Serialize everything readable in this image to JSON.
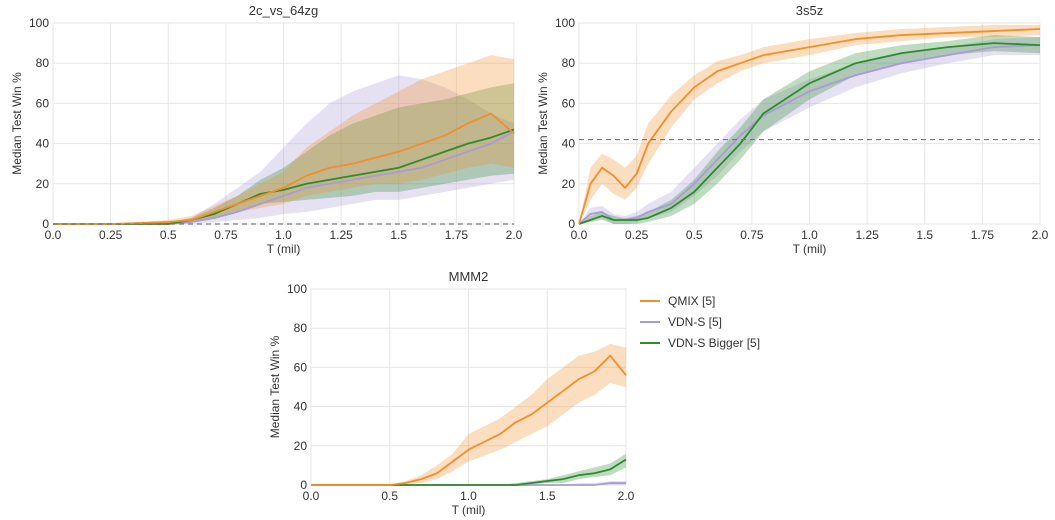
{
  "legend": {
    "items": [
      {
        "label": "QMIX [5]",
        "color": "#f28e2b"
      },
      {
        "label": "VDN-S [5]",
        "color": "#a89bd6"
      },
      {
        "label": "VDN-S Bigger [5]",
        "color": "#2e8b2e"
      }
    ]
  },
  "chart_data": [
    {
      "type": "line",
      "title": "2c_vs_64zg",
      "xlabel": "T (mil)",
      "ylabel": "Median Test Win %",
      "xlim": [
        0,
        2.0
      ],
      "ylim": [
        0,
        100
      ],
      "xticks": [
        "0.0",
        "0.25",
        "0.5",
        "0.75",
        "1.0",
        "1.25",
        "1.5",
        "1.75",
        "2.0"
      ],
      "yticks": [
        "0",
        "20",
        "40",
        "60",
        "80",
        "100"
      ],
      "grid": true,
      "reference_line": 0,
      "x": [
        0,
        0.25,
        0.5,
        0.6,
        0.7,
        0.8,
        0.9,
        1.0,
        1.1,
        1.2,
        1.3,
        1.4,
        1.5,
        1.6,
        1.7,
        1.8,
        1.9,
        2.0
      ],
      "series": [
        {
          "name": "QMIX [5]",
          "values": [
            0,
            0,
            1,
            2,
            6,
            10,
            14,
            18,
            24,
            28,
            30,
            33,
            36,
            40,
            44,
            50,
            55,
            45
          ],
          "band_low": [
            0,
            0,
            0,
            1,
            3,
            6,
            8,
            10,
            14,
            16,
            18,
            20,
            20,
            22,
            25,
            28,
            30,
            28
          ],
          "band_high": [
            0,
            0,
            2,
            4,
            9,
            14,
            20,
            26,
            38,
            46,
            54,
            60,
            66,
            72,
            76,
            80,
            84,
            82
          ]
        },
        {
          "name": "VDN-S [5]",
          "values": [
            0,
            0,
            0,
            1,
            3,
            6,
            10,
            14,
            18,
            20,
            22,
            24,
            26,
            28,
            32,
            36,
            40,
            46
          ],
          "band_low": [
            0,
            0,
            0,
            0,
            1,
            2,
            3,
            5,
            6,
            8,
            10,
            12,
            12,
            14,
            16,
            18,
            20,
            22
          ],
          "band_high": [
            0,
            0,
            1,
            3,
            10,
            18,
            26,
            38,
            50,
            60,
            66,
            70,
            74,
            72,
            68,
            62,
            55,
            50
          ]
        },
        {
          "name": "VDN-S Bigger [5]",
          "values": [
            0,
            0,
            0,
            2,
            5,
            10,
            15,
            17,
            20,
            22,
            24,
            26,
            28,
            32,
            36,
            40,
            43,
            47
          ],
          "band_low": [
            0,
            0,
            0,
            1,
            3,
            6,
            10,
            11,
            12,
            13,
            14,
            16,
            16,
            18,
            20,
            22,
            24,
            25
          ],
          "band_high": [
            0,
            0,
            1,
            3,
            8,
            14,
            22,
            28,
            36,
            44,
            50,
            54,
            58,
            60,
            62,
            65,
            68,
            70
          ]
        }
      ]
    },
    {
      "type": "line",
      "title": "3s5z",
      "xlabel": "T (mil)",
      "ylabel": "Median Test Win %",
      "xlim": [
        0,
        2.0
      ],
      "ylim": [
        0,
        100
      ],
      "xticks": [
        "0.0",
        "0.25",
        "0.5",
        "0.75",
        "1.0",
        "1.25",
        "1.5",
        "1.75",
        "2.0"
      ],
      "yticks": [
        "0",
        "20",
        "40",
        "60",
        "80",
        "100"
      ],
      "grid": true,
      "reference_line": 42,
      "x": [
        0,
        0.05,
        0.1,
        0.15,
        0.2,
        0.25,
        0.3,
        0.4,
        0.5,
        0.6,
        0.7,
        0.8,
        1.0,
        1.2,
        1.4,
        1.6,
        1.8,
        2.0
      ],
      "series": [
        {
          "name": "QMIX [5]",
          "values": [
            0,
            20,
            28,
            24,
            18,
            25,
            40,
            56,
            68,
            76,
            80,
            84,
            88,
            92,
            94,
            95,
            96,
            97
          ],
          "band_low": [
            0,
            12,
            20,
            15,
            12,
            18,
            30,
            48,
            62,
            70,
            76,
            80,
            84,
            89,
            91,
            93,
            93,
            94
          ],
          "band_high": [
            0,
            28,
            35,
            32,
            28,
            34,
            50,
            64,
            74,
            81,
            84,
            88,
            92,
            95,
            97,
            98,
            99,
            99
          ]
        },
        {
          "name": "VDN-S [5]",
          "values": [
            0,
            5,
            6,
            2,
            2,
            3,
            6,
            10,
            20,
            32,
            44,
            54,
            66,
            74,
            80,
            84,
            88,
            89
          ],
          "band_low": [
            0,
            2,
            3,
            0,
            0,
            1,
            3,
            6,
            14,
            24,
            36,
            46,
            58,
            68,
            75,
            80,
            84,
            84
          ],
          "band_high": [
            0,
            8,
            9,
            5,
            4,
            6,
            10,
            16,
            28,
            40,
            52,
            62,
            72,
            80,
            85,
            88,
            92,
            93
          ]
        },
        {
          "name": "VDN-S Bigger [5]",
          "values": [
            0,
            2,
            4,
            2,
            2,
            2,
            3,
            8,
            16,
            28,
            40,
            55,
            70,
            80,
            85,
            88,
            90,
            89
          ],
          "band_low": [
            0,
            1,
            2,
            0,
            0,
            0,
            1,
            4,
            10,
            20,
            32,
            46,
            62,
            74,
            80,
            84,
            86,
            85
          ],
          "band_high": [
            0,
            4,
            6,
            4,
            3,
            4,
            6,
            12,
            22,
            36,
            48,
            62,
            76,
            85,
            89,
            91,
            94,
            93
          ]
        }
      ]
    },
    {
      "type": "line",
      "title": "MMM2",
      "xlabel": "T (mil)",
      "ylabel": "Median Test Win %",
      "xlim": [
        0,
        2.0
      ],
      "ylim": [
        0,
        100
      ],
      "xticks": [
        "0.0",
        "0.5",
        "1.0",
        "1.5",
        "2.0"
      ],
      "yticks": [
        "0",
        "20",
        "40",
        "60",
        "80",
        "100"
      ],
      "grid": true,
      "reference_line": null,
      "x": [
        0,
        0.5,
        0.6,
        0.7,
        0.8,
        0.9,
        1.0,
        1.1,
        1.2,
        1.3,
        1.4,
        1.5,
        1.6,
        1.7,
        1.8,
        1.9,
        2.0
      ],
      "series": [
        {
          "name": "QMIX [5]",
          "values": [
            0,
            0,
            1,
            3,
            6,
            12,
            18,
            22,
            26,
            32,
            36,
            42,
            48,
            54,
            58,
            66,
            56
          ],
          "band_low": [
            0,
            0,
            0,
            1,
            3,
            7,
            12,
            15,
            18,
            22,
            26,
            30,
            36,
            42,
            46,
            52,
            50
          ],
          "band_high": [
            0,
            0,
            2,
            5,
            10,
            16,
            26,
            30,
            34,
            40,
            46,
            54,
            60,
            66,
            68,
            72,
            70
          ]
        },
        {
          "name": "VDN-S [5]",
          "values": [
            0,
            0,
            0,
            0,
            0,
            0,
            0,
            0,
            0,
            0,
            0,
            0,
            0,
            0,
            0,
            1,
            1
          ],
          "band_low": [
            0,
            0,
            0,
            0,
            0,
            0,
            0,
            0,
            0,
            0,
            0,
            0,
            0,
            0,
            0,
            0,
            0
          ],
          "band_high": [
            0,
            0,
            0,
            0,
            0,
            0,
            0,
            0,
            0,
            0,
            0,
            0,
            0,
            1,
            1,
            2,
            2
          ]
        },
        {
          "name": "VDN-S Bigger [5]",
          "values": [
            0,
            0,
            0,
            0,
            0,
            0,
            0,
            0,
            0,
            0,
            1,
            2,
            3,
            5,
            6,
            8,
            13
          ],
          "band_low": [
            0,
            0,
            0,
            0,
            0,
            0,
            0,
            0,
            0,
            0,
            0,
            1,
            1,
            3,
            4,
            5,
            9
          ],
          "band_high": [
            0,
            0,
            0,
            0,
            0,
            0,
            0,
            0,
            0,
            1,
            2,
            3,
            5,
            7,
            9,
            11,
            16
          ]
        }
      ]
    }
  ]
}
